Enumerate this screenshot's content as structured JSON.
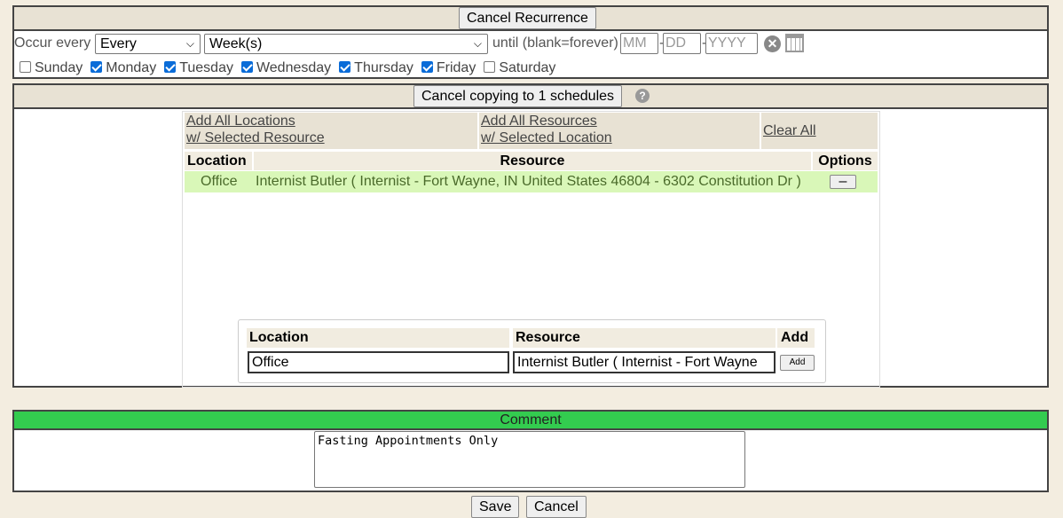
{
  "recurrence": {
    "cancel_label": "Cancel Recurrence",
    "occur_label": "Occur every",
    "every_value": "Every",
    "period_value": "Week(s)",
    "until_label": "until (blank=forever)",
    "month_placeholder": "MM",
    "day_placeholder": "DD",
    "year_placeholder": "YYYY",
    "days": [
      {
        "label": "Sunday",
        "checked": false
      },
      {
        "label": "Monday",
        "checked": true
      },
      {
        "label": "Tuesday",
        "checked": true
      },
      {
        "label": "Wednesday",
        "checked": true
      },
      {
        "label": "Thursday",
        "checked": true
      },
      {
        "label": "Friday",
        "checked": true
      },
      {
        "label": "Saturday",
        "checked": false
      }
    ]
  },
  "copy": {
    "cancel_label": "Cancel copying to 1 schedules",
    "add_all_locations_1": "Add All Locations",
    "add_all_locations_2": "w/ Selected Resource",
    "add_all_resources_1": "Add All Resources",
    "add_all_resources_2": "w/ Selected Location",
    "clear_all": "Clear All",
    "headers": {
      "location": "Location",
      "resource": "Resource",
      "options": "Options"
    },
    "rows": [
      {
        "location": "Office",
        "resource": "Internist Butler ( Internist - Fort Wayne, IN United States 46804 - 6302 Constitution Dr )",
        "remove": "–"
      }
    ],
    "add_form": {
      "location_header": "Location",
      "resource_header": "Resource",
      "add_header": "Add",
      "location_value": "Office",
      "resource_value": "Internist Butler ( Internist -  Fort Wayne",
      "add_label": "Add"
    }
  },
  "comment": {
    "header": "Comment",
    "value": "Fasting Appointments Only",
    "accent": "#33cc4f"
  },
  "footer": {
    "save": "Save",
    "cancel": "Cancel"
  }
}
